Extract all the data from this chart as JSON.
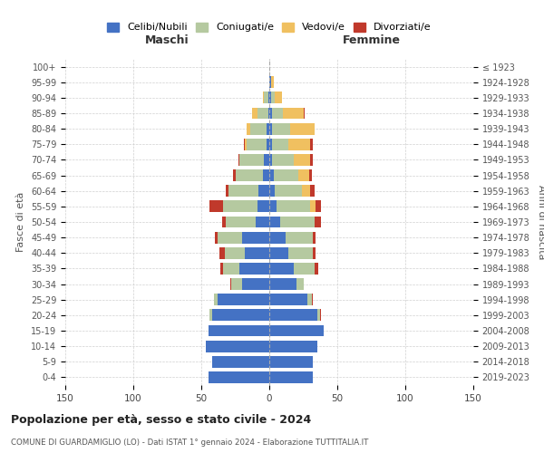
{
  "age_groups": [
    "0-4",
    "5-9",
    "10-14",
    "15-19",
    "20-24",
    "25-29",
    "30-34",
    "35-39",
    "40-44",
    "45-49",
    "50-54",
    "55-59",
    "60-64",
    "65-69",
    "70-74",
    "75-79",
    "80-84",
    "85-89",
    "90-94",
    "95-99",
    "100+"
  ],
  "birth_years": [
    "2019-2023",
    "2014-2018",
    "2009-2013",
    "2004-2008",
    "1999-2003",
    "1994-1998",
    "1989-1993",
    "1984-1988",
    "1979-1983",
    "1974-1978",
    "1969-1973",
    "1964-1968",
    "1959-1963",
    "1954-1958",
    "1949-1953",
    "1944-1948",
    "1939-1943",
    "1934-1938",
    "1929-1933",
    "1924-1928",
    "≤ 1923"
  ],
  "males": {
    "celibi": [
      45,
      42,
      47,
      45,
      42,
      38,
      20,
      22,
      18,
      20,
      10,
      9,
      8,
      5,
      4,
      2,
      2,
      1,
      1,
      0,
      0
    ],
    "coniugati": [
      0,
      0,
      0,
      0,
      2,
      3,
      8,
      12,
      15,
      18,
      22,
      25,
      22,
      20,
      18,
      15,
      12,
      8,
      3,
      0,
      0
    ],
    "vedovi": [
      0,
      0,
      0,
      0,
      0,
      0,
      0,
      0,
      0,
      0,
      0,
      0,
      0,
      0,
      0,
      1,
      3,
      4,
      1,
      0,
      0
    ],
    "divorziati": [
      0,
      0,
      0,
      0,
      0,
      0,
      1,
      2,
      4,
      2,
      3,
      10,
      2,
      2,
      1,
      1,
      0,
      0,
      0,
      0,
      0
    ]
  },
  "females": {
    "celibi": [
      32,
      32,
      35,
      40,
      35,
      28,
      20,
      18,
      14,
      12,
      8,
      5,
      4,
      3,
      2,
      2,
      2,
      2,
      1,
      1,
      0
    ],
    "coniugati": [
      0,
      0,
      0,
      0,
      2,
      3,
      5,
      15,
      18,
      20,
      25,
      25,
      20,
      18,
      16,
      12,
      13,
      8,
      3,
      0,
      0
    ],
    "vedovi": [
      0,
      0,
      0,
      0,
      0,
      0,
      0,
      0,
      0,
      0,
      0,
      4,
      6,
      8,
      12,
      16,
      18,
      15,
      5,
      2,
      0
    ],
    "divorziati": [
      0,
      0,
      0,
      0,
      1,
      1,
      0,
      3,
      2,
      2,
      5,
      4,
      3,
      2,
      2,
      2,
      0,
      1,
      0,
      0,
      0
    ]
  },
  "colors": {
    "celibi": "#4472c4",
    "coniugati": "#b5c9a0",
    "vedovi": "#f0c060",
    "divorziati": "#c0392b"
  },
  "legend_labels": [
    "Celibi/Nubili",
    "Coniugati/e",
    "Vedovi/e",
    "Divorziati/e"
  ],
  "title": "Popolazione per età, sesso e stato civile - 2024",
  "subtitle": "COMUNE DI GUARDAMIGLIO (LO) - Dati ISTAT 1° gennaio 2024 - Elaborazione TUTTITALIA.IT",
  "xlabel_left": "Maschi",
  "xlabel_right": "Femmine",
  "ylabel_left": "Fasce di età",
  "ylabel_right": "Anni di nascita",
  "xlim": 150,
  "background_color": "#ffffff",
  "grid_color": "#cccccc"
}
